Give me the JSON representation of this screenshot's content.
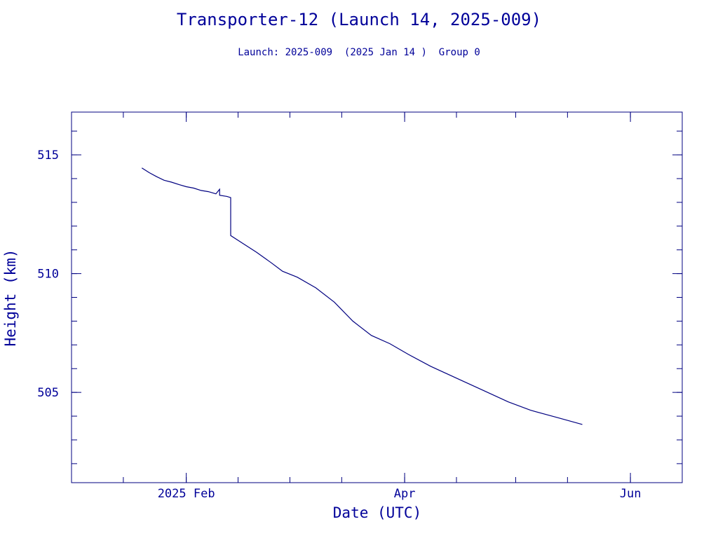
{
  "chart_data": {
    "type": "line",
    "title": "Transporter-12 (Launch 14, 2025-009)",
    "subtitle": "Launch: 2025-009  (2025 Jan 14 )  Group 0",
    "xlabel": "Date (UTC)",
    "ylabel": "Height (km)",
    "xlim": [
      "2025-01-01",
      "2025-06-15"
    ],
    "ylim": [
      501.2,
      516.8
    ],
    "grid": false,
    "line_color": "#000080",
    "x_ticks": [
      {
        "date": "2025-02-01",
        "label": "2025 Feb"
      },
      {
        "date": "2025-04-01",
        "label": "Apr"
      },
      {
        "date": "2025-06-01",
        "label": "Jun"
      }
    ],
    "x_minor_ticks": [
      "2025-01-15",
      "2025-02-01",
      "2025-02-15",
      "2025-03-01",
      "2025-03-15",
      "2025-04-01",
      "2025-04-15",
      "2025-05-01",
      "2025-05-15",
      "2025-06-01"
    ],
    "y_ticks": [
      {
        "value": 505,
        "label": "505"
      },
      {
        "value": 510,
        "label": "510"
      },
      {
        "value": 515,
        "label": "515"
      }
    ],
    "y_minor_ticks": [
      502,
      503,
      504,
      505,
      506,
      507,
      508,
      509,
      510,
      511,
      512,
      513,
      514,
      515,
      516
    ],
    "series": [
      {
        "points": [
          {
            "x": "2025-01-20",
            "y": 514.45
          },
          {
            "x": "2025-01-22",
            "y": 514.25
          },
          {
            "x": "2025-01-24",
            "y": 514.08
          },
          {
            "x": "2025-01-26",
            "y": 513.93
          },
          {
            "x": "2025-01-28",
            "y": 513.85
          },
          {
            "x": "2025-01-30",
            "y": 513.75
          },
          {
            "x": "2025-02-01",
            "y": 513.66
          },
          {
            "x": "2025-02-03",
            "y": 513.6
          },
          {
            "x": "2025-02-05",
            "y": 513.5
          },
          {
            "x": "2025-02-07",
            "y": 513.45
          },
          {
            "x": "2025-02-09",
            "y": 513.36
          },
          {
            "x": "2025-02-10",
            "y": 513.55
          },
          {
            "x": "2025-02-10",
            "y": 513.3
          },
          {
            "x": "2025-02-12",
            "y": 513.25
          },
          {
            "x": "2025-02-13",
            "y": 513.2
          },
          {
            "x": "2025-02-13",
            "y": 511.6
          },
          {
            "x": "2025-02-16",
            "y": 511.3
          },
          {
            "x": "2025-02-20",
            "y": 510.9
          },
          {
            "x": "2025-02-24",
            "y": 510.45
          },
          {
            "x": "2025-02-27",
            "y": 510.1
          },
          {
            "x": "2025-03-03",
            "y": 509.85
          },
          {
            "x": "2025-03-08",
            "y": 509.4
          },
          {
            "x": "2025-03-13",
            "y": 508.8
          },
          {
            "x": "2025-03-18",
            "y": 508.0
          },
          {
            "x": "2025-03-23",
            "y": 507.4
          },
          {
            "x": "2025-03-28",
            "y": 507.05
          },
          {
            "x": "2025-04-02",
            "y": 506.6
          },
          {
            "x": "2025-04-08",
            "y": 506.1
          },
          {
            "x": "2025-04-15",
            "y": 505.6
          },
          {
            "x": "2025-04-22",
            "y": 505.1
          },
          {
            "x": "2025-04-29",
            "y": 504.6
          },
          {
            "x": "2025-05-05",
            "y": 504.25
          },
          {
            "x": "2025-05-12",
            "y": 503.95
          },
          {
            "x": "2025-05-19",
            "y": 503.65
          }
        ]
      }
    ]
  }
}
